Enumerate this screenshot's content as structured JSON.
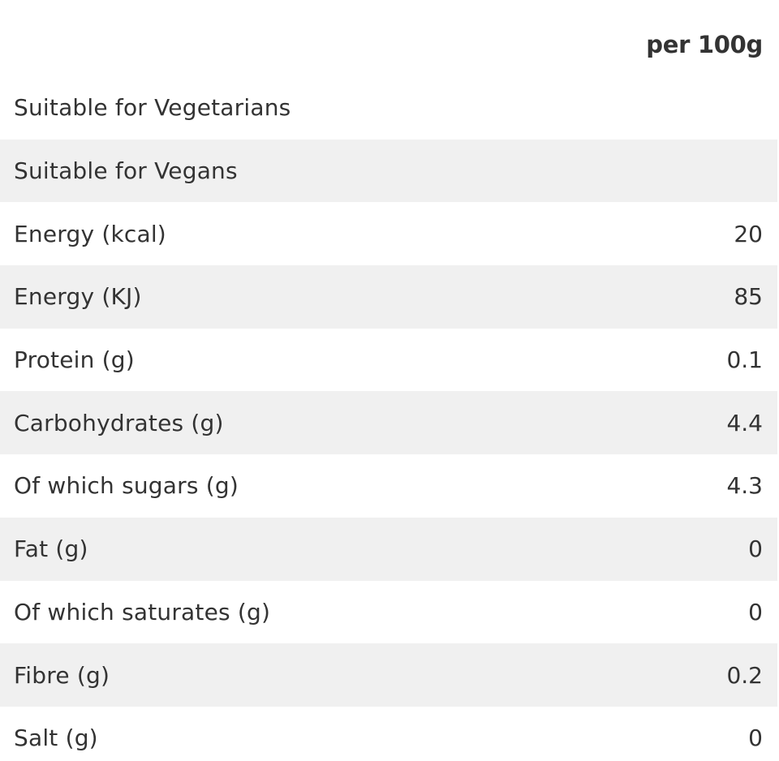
{
  "table": {
    "column_header": "per 100g",
    "rows": [
      {
        "label": "Suitable for Vegetarians",
        "value": ""
      },
      {
        "label": "Suitable for Vegans",
        "value": ""
      },
      {
        "label": "Energy (kcal)",
        "value": "20"
      },
      {
        "label": "Energy (KJ)",
        "value": "85"
      },
      {
        "label": "Protein (g)",
        "value": "0.1"
      },
      {
        "label": "Carbohydrates (g)",
        "value": "4.4"
      },
      {
        "label": "Of which sugars (g)",
        "value": "4.3"
      },
      {
        "label": "Fat (g)",
        "value": "0"
      },
      {
        "label": "Of which saturates (g)",
        "value": "0"
      },
      {
        "label": "Fibre (g)",
        "value": "0.2"
      },
      {
        "label": "Salt (g)",
        "value": "0"
      }
    ]
  },
  "colors": {
    "row_shade": "#f0f0f0",
    "text": "#333333"
  }
}
